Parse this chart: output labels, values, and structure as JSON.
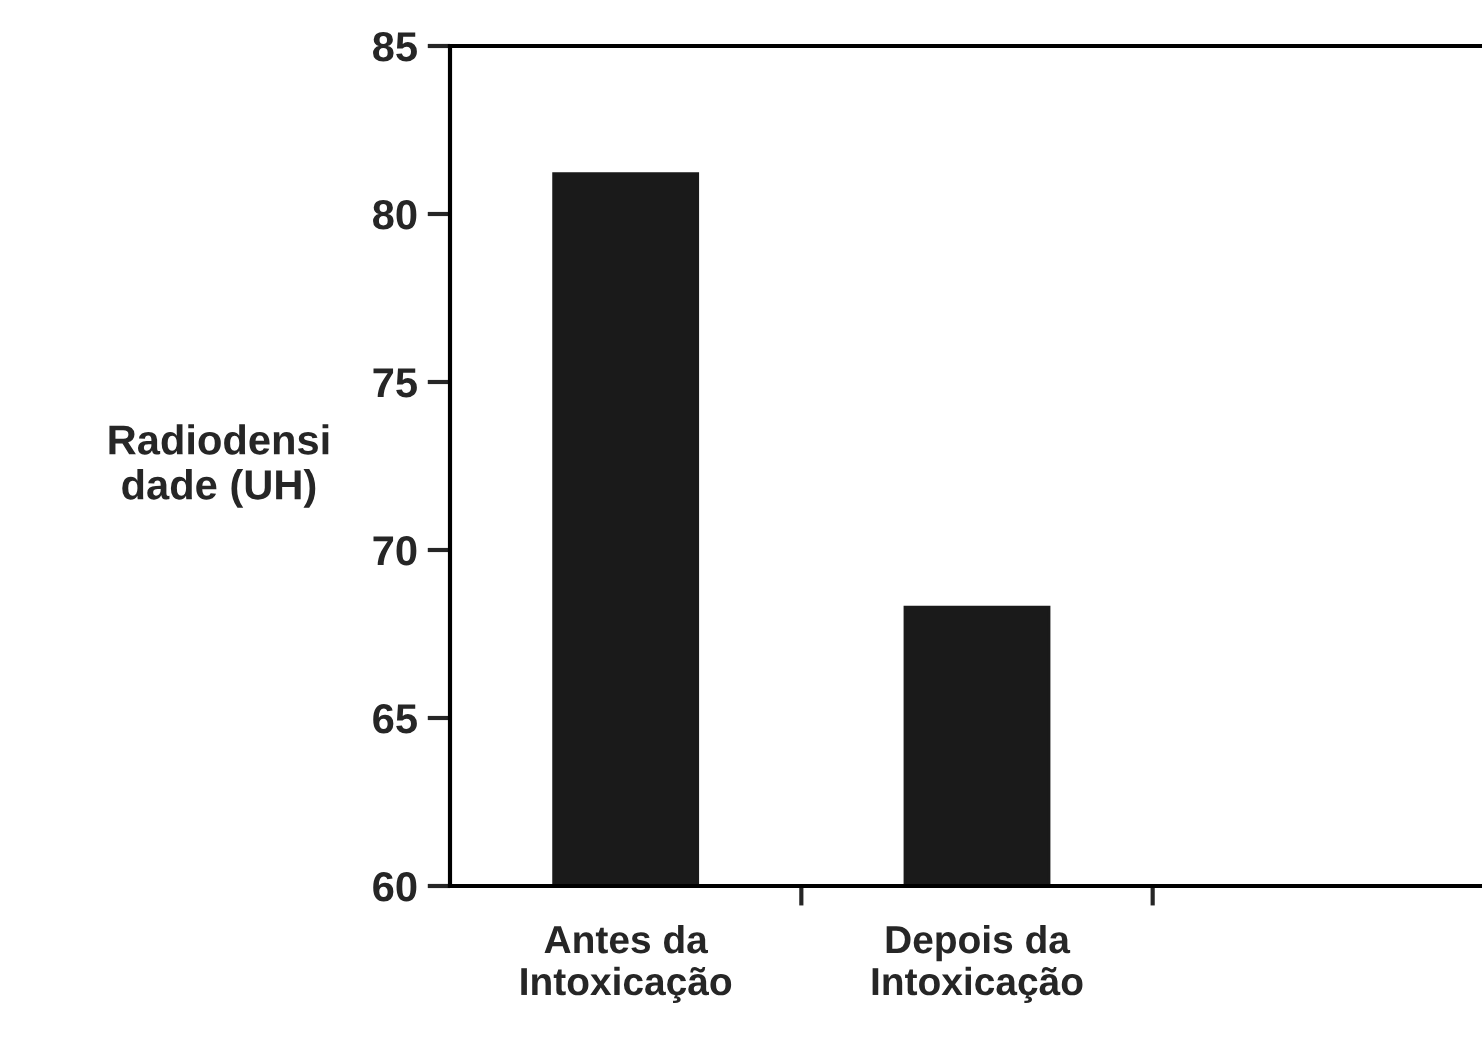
{
  "chart_data": {
    "type": "bar",
    "ylabel": "Radiodensi\ndade (UH)",
    "categories": [
      "Antes da\nIntoxicação",
      "Depois da\nIntoxicação",
      null
    ],
    "values": [
      81.2,
      68.3,
      null
    ],
    "color": "#1a1a1a",
    "ylim": [
      60,
      85
    ],
    "yticks": [
      60,
      65,
      70,
      75,
      80,
      85
    ],
    "grid": false,
    "legend": false
  }
}
